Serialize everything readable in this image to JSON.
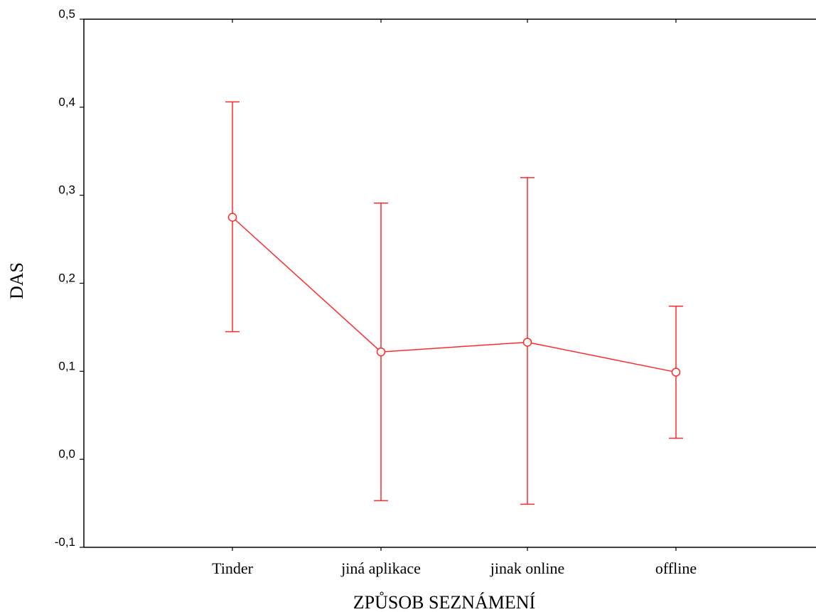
{
  "chart_data": {
    "type": "line",
    "title": "",
    "xlabel": "ZPŮSOB SEZNÁMENÍ",
    "ylabel": "DAS",
    "categories": [
      "Tinder",
      "jiná aplikace",
      "jinak online",
      "offline"
    ],
    "series": [
      {
        "values": [
          0.275,
          0.122,
          0.133,
          0.099
        ],
        "lower": [
          0.145,
          -0.047,
          -0.051,
          0.024
        ],
        "upper": [
          0.406,
          0.291,
          0.32,
          0.174
        ]
      }
    ],
    "ylim": [
      -0.1,
      0.5
    ],
    "yticks": [
      "-0,1",
      "0,0",
      "0,1",
      "0,2",
      "0,3",
      "0,4",
      "0,5"
    ],
    "color": "#ff2a2a",
    "grid": false,
    "legend": "none"
  }
}
